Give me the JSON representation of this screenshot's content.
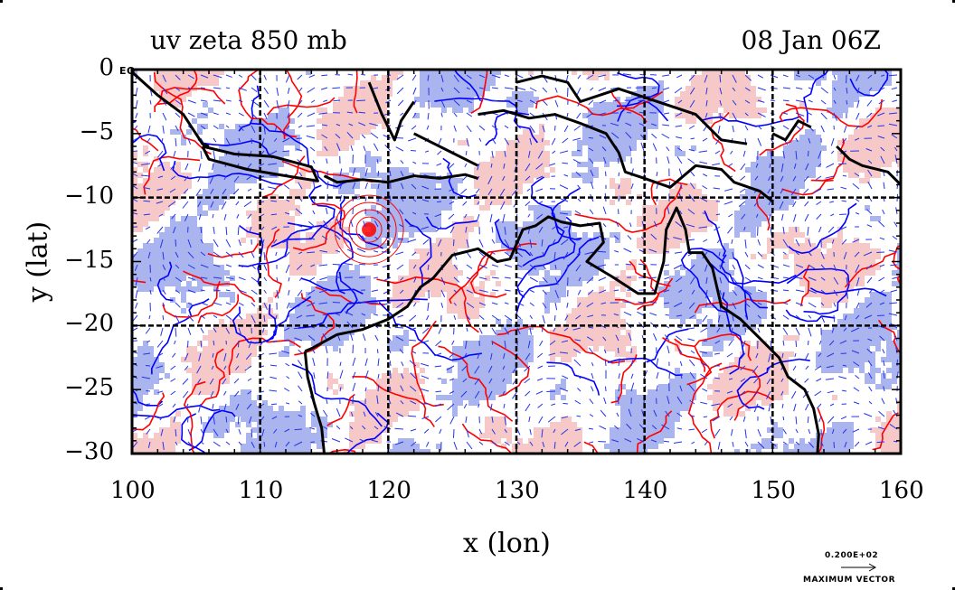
{
  "title_left": "uv zeta 850 mb",
  "title_right": "08 Jan 06Z",
  "xlabel": "x (lon)",
  "ylabel": "y (lat)",
  "x_ticks": [
    {
      "value": 100,
      "label": "100"
    },
    {
      "value": 110,
      "label": "110"
    },
    {
      "value": 120,
      "label": "120"
    },
    {
      "value": 130,
      "label": "130"
    },
    {
      "value": 140,
      "label": "140"
    },
    {
      "value": 150,
      "label": "150"
    },
    {
      "value": 160,
      "label": "160"
    }
  ],
  "y_ticks": [
    {
      "value": 0,
      "label": "0"
    },
    {
      "value": -5,
      "label": "−5"
    },
    {
      "value": -10,
      "label": "−10"
    },
    {
      "value": -15,
      "label": "−15"
    },
    {
      "value": -20,
      "label": "−20"
    },
    {
      "value": -25,
      "label": "−25"
    },
    {
      "value": -30,
      "label": "−30"
    }
  ],
  "corner_label": "EQ",
  "legend_value": "0.200E+02",
  "legend_label": "MAXIMUM VECTOR",
  "colors": {
    "positive_shade": "#f6c8c8",
    "negative_shade": "#aab4ee",
    "contour_positive": "#ff0000",
    "contour_negative": "#0000ff",
    "coast": "#000000",
    "grid": "#000000"
  },
  "chart_data": {
    "type": "map",
    "variable": "uv zeta 850 mb",
    "time": "08 Jan 06Z",
    "xlim": [
      100,
      160
    ],
    "ylim": [
      -30,
      0
    ],
    "grid_lon": [
      110,
      120,
      130,
      140,
      150
    ],
    "grid_lat": [
      -10,
      -20
    ],
    "layers": [
      "relative vorticity shading",
      "vorticity contours",
      "wind vectors",
      "coastlines"
    ]
  }
}
